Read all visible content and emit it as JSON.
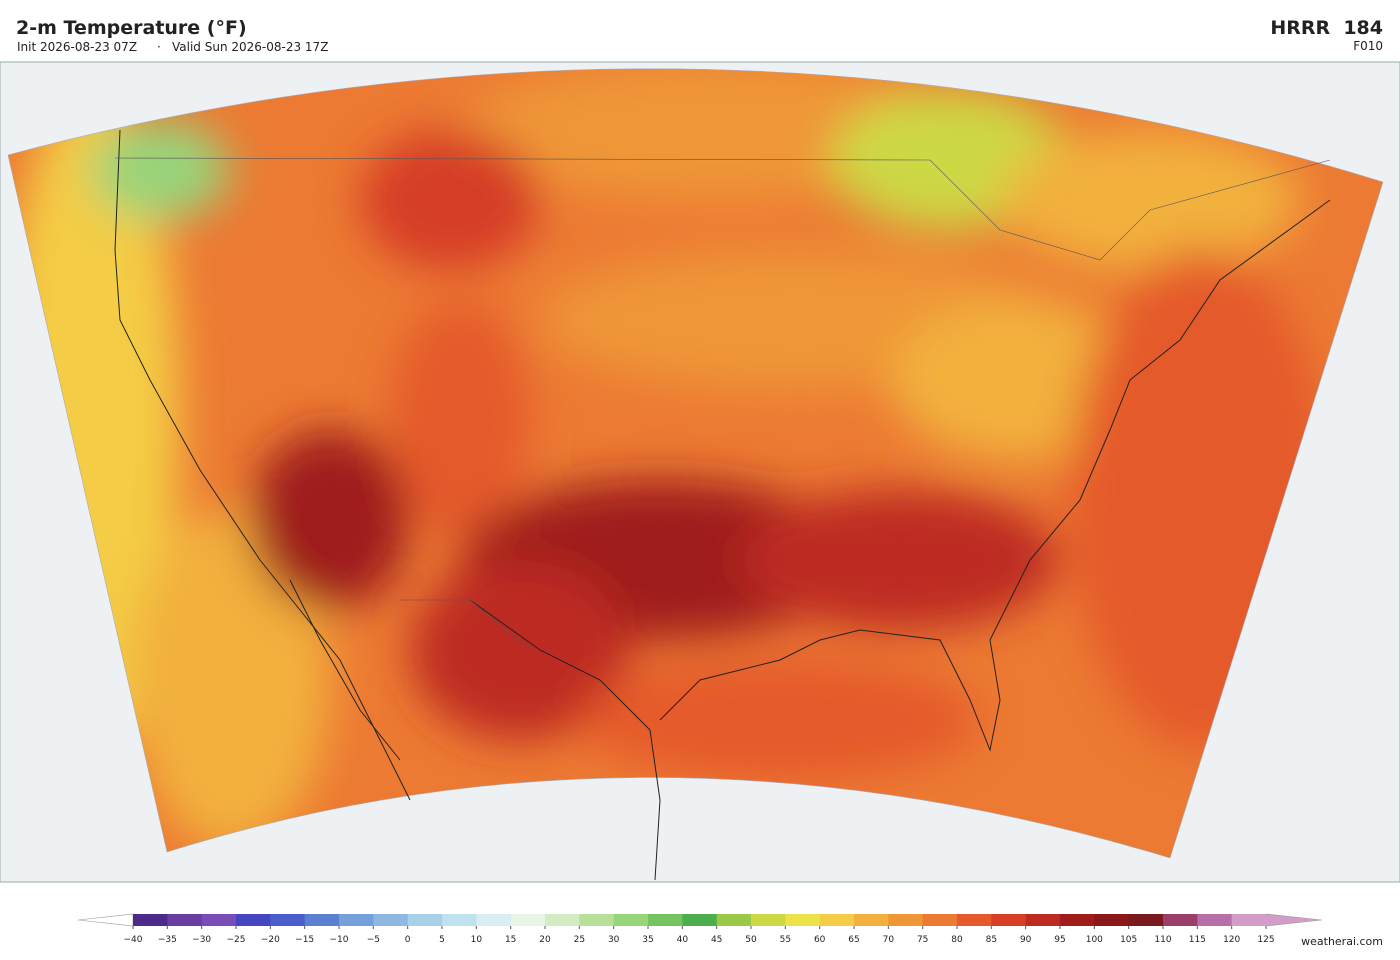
{
  "header": {
    "title": "2-m Temperature  (°F)",
    "init": "Init 2026-08-23 07Z",
    "separator": "·",
    "valid": "Valid Sun 2026-08-23 17Z",
    "model": "HRRR  184",
    "frame": "F010"
  },
  "colorbar": {
    "ticks": [
      {
        "value": -40,
        "label": "−40"
      },
      {
        "value": -35,
        "label": "−35"
      },
      {
        "value": -30,
        "label": "−30"
      },
      {
        "value": -25,
        "label": "−25"
      },
      {
        "value": -20,
        "label": "−20"
      },
      {
        "value": -15,
        "label": "−15"
      },
      {
        "value": -10,
        "label": "−10"
      },
      {
        "value": -5,
        "label": "−5"
      },
      0,
      5,
      10,
      15,
      20,
      25,
      30,
      35,
      40,
      45,
      50,
      55,
      60,
      65,
      70,
      75,
      80,
      85,
      90,
      95,
      100,
      105,
      110,
      115,
      120,
      125
    ],
    "colors": [
      "#4b2a8a",
      "#6a3ea0",
      "#7a4db6",
      "#4545bf",
      "#4a5fcb",
      "#5b80d0",
      "#74a1d9",
      "#8fb8e0",
      "#a8d0e8",
      "#c0e2ef",
      "#d8eef2",
      "#e6f5e6",
      "#d4ecc4",
      "#b8e09a",
      "#98d47a",
      "#74c35e",
      "#4cae4c",
      "#9ac94a",
      "#cdd845",
      "#ece34a",
      "#f4cc45",
      "#f2b03e",
      "#ef9638",
      "#ec7a33",
      "#e55a2c",
      "#d63e25",
      "#bd2a20",
      "#9f1e1c",
      "#8a1818",
      "#7a1a1f",
      "#9a3e6a",
      "#b86fa8",
      "#d49cc8"
    ],
    "under_color": "#ffffff",
    "over_color": "#d49cc8"
  },
  "watermark": "weatherai.com"
}
